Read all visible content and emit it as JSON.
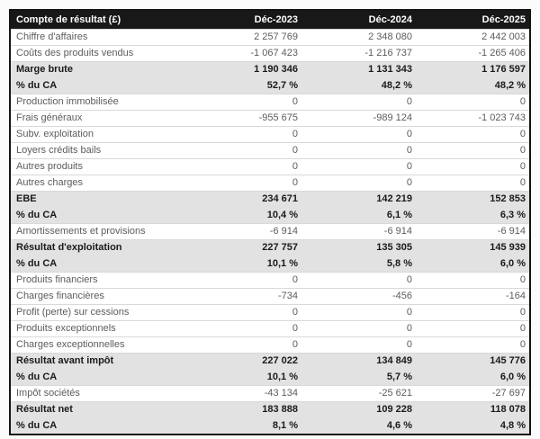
{
  "colors": {
    "header_bg": "#181818",
    "header_text": "#ffffff",
    "emphasis_row_bg": "#e2e2e2",
    "emphasis_text": "#1a1a1a",
    "normal_text": "#5c5c5c",
    "row_border": "#d9d9d9",
    "table_border": "#141414"
  },
  "chart_data": {
    "type": "table",
    "title": "Compte de résultat (£)",
    "columns": [
      "Compte de résultat (£)",
      "Déc-2023",
      "Déc-2024",
      "Déc-2025"
    ],
    "rows": [
      {
        "label": "Chiffre d'affaires",
        "values": [
          "2 257 769",
          "2 348 080",
          "2 442 003"
        ],
        "emphasis": false
      },
      {
        "label": "Coûts des produits vendus",
        "values": [
          "-1 067 423",
          "-1 216 737",
          "-1 265 406"
        ],
        "emphasis": false
      },
      {
        "label": "Marge brute",
        "values": [
          "1 190 346",
          "1 131 343",
          "1 176 597"
        ],
        "emphasis": true
      },
      {
        "label": "% du CA",
        "values": [
          "52,7 %",
          "48,2 %",
          "48,2 %"
        ],
        "emphasis": true
      },
      {
        "label": "Production immobilisée",
        "values": [
          "0",
          "0",
          "0"
        ],
        "emphasis": false
      },
      {
        "label": "Frais généraux",
        "values": [
          "-955 675",
          "-989 124",
          "-1 023 743"
        ],
        "emphasis": false
      },
      {
        "label": "Subv. exploitation",
        "values": [
          "0",
          "0",
          "0"
        ],
        "emphasis": false
      },
      {
        "label": "Loyers crédits bails",
        "values": [
          "0",
          "0",
          "0"
        ],
        "emphasis": false
      },
      {
        "label": "Autres produits",
        "values": [
          "0",
          "0",
          "0"
        ],
        "emphasis": false
      },
      {
        "label": "Autres charges",
        "values": [
          "0",
          "0",
          "0"
        ],
        "emphasis": false
      },
      {
        "label": "EBE",
        "values": [
          "234 671",
          "142 219",
          "152 853"
        ],
        "emphasis": true
      },
      {
        "label": "% du CA",
        "values": [
          "10,4 %",
          "6,1 %",
          "6,3 %"
        ],
        "emphasis": true
      },
      {
        "label": "Amortissements et provisions",
        "values": [
          "-6 914",
          "-6 914",
          "-6 914"
        ],
        "emphasis": false
      },
      {
        "label": "Résultat d'exploitation",
        "values": [
          "227 757",
          "135 305",
          "145 939"
        ],
        "emphasis": true
      },
      {
        "label": "% du CA",
        "values": [
          "10,1 %",
          "5,8 %",
          "6,0 %"
        ],
        "emphasis": true
      },
      {
        "label": "Produits financiers",
        "values": [
          "0",
          "0",
          "0"
        ],
        "emphasis": false
      },
      {
        "label": "Charges financières",
        "values": [
          "-734",
          "-456",
          "-164"
        ],
        "emphasis": false
      },
      {
        "label": "Profit (perte) sur cessions",
        "values": [
          "0",
          "0",
          "0"
        ],
        "emphasis": false
      },
      {
        "label": "Produits exceptionnels",
        "values": [
          "0",
          "0",
          "0"
        ],
        "emphasis": false
      },
      {
        "label": "Charges exceptionnelles",
        "values": [
          "0",
          "0",
          "0"
        ],
        "emphasis": false
      },
      {
        "label": "Résultat avant impôt",
        "values": [
          "227 022",
          "134 849",
          "145 776"
        ],
        "emphasis": true
      },
      {
        "label": "% du CA",
        "values": [
          "10,1 %",
          "5,7 %",
          "6,0 %"
        ],
        "emphasis": true
      },
      {
        "label": "Impôt sociétés",
        "values": [
          "-43 134",
          "-25 621",
          "-27 697"
        ],
        "emphasis": false
      },
      {
        "label": "Résultat net",
        "values": [
          "183 888",
          "109 228",
          "118 078"
        ],
        "emphasis": true
      },
      {
        "label": "% du CA",
        "values": [
          "8,1 %",
          "4,6 %",
          "4,8 %"
        ],
        "emphasis": true
      }
    ]
  }
}
